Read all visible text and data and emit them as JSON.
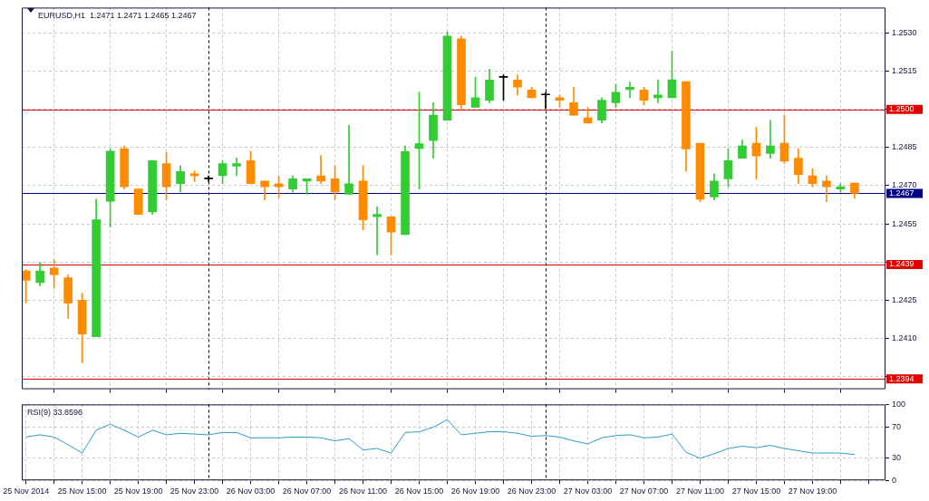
{
  "chart_data": [
    {
      "type": "candlestick",
      "title": "EURUSD,H1  1.2471 1.2471 1.2465 1.2467",
      "x": [
        "2014-11-25T11:00",
        "2014-11-25T12:00",
        "2014-11-25T13:00",
        "2014-11-25T14:00",
        "2014-11-25T15:00",
        "2014-11-25T16:00",
        "2014-11-25T17:00",
        "2014-11-25T18:00",
        "2014-11-25T19:00",
        "2014-11-25T20:00",
        "2014-11-25T21:00",
        "2014-11-25T22:00",
        "2014-11-25T23:00",
        "2014-11-26T00:00",
        "2014-11-26T01:00",
        "2014-11-26T02:00",
        "2014-11-26T03:00",
        "2014-11-26T04:00",
        "2014-11-26T05:00",
        "2014-11-26T06:00",
        "2014-11-26T07:00",
        "2014-11-26T08:00",
        "2014-11-26T09:00",
        "2014-11-26T10:00",
        "2014-11-26T11:00",
        "2014-11-26T12:00",
        "2014-11-26T13:00",
        "2014-11-26T14:00",
        "2014-11-26T15:00",
        "2014-11-26T16:00",
        "2014-11-26T17:00",
        "2014-11-26T18:00",
        "2014-11-26T19:00",
        "2014-11-26T20:00",
        "2014-11-26T21:00",
        "2014-11-26T22:00",
        "2014-11-26T23:00",
        "2014-11-27T00:00",
        "2014-11-27T01:00",
        "2014-11-27T02:00",
        "2014-11-27T03:00",
        "2014-11-27T04:00",
        "2014-11-27T05:00",
        "2014-11-27T06:00",
        "2014-11-27T07:00",
        "2014-11-27T08:00",
        "2014-11-27T09:00",
        "2014-11-27T10:00",
        "2014-11-27T11:00",
        "2014-11-27T12:00",
        "2014-11-27T13:00",
        "2014-11-27T14:00",
        "2014-11-27T15:00",
        "2014-11-27T16:00",
        "2014-11-27T17:00",
        "2014-11-27T18:00",
        "2014-11-27T19:00",
        "2014-11-27T20:00",
        "2014-11-27T21:00",
        "2014-11-27T22:00"
      ],
      "ohlc": [
        [
          1.24365,
          1.2437,
          1.2424,
          1.24328
        ],
        [
          1.24319,
          1.24397,
          1.24307,
          1.24365
        ],
        [
          1.24376,
          1.24408,
          1.24296,
          1.2435
        ],
        [
          1.24338,
          1.2435,
          1.24178,
          1.24238
        ],
        [
          1.2425,
          1.24278,
          1.24004,
          1.24117
        ],
        [
          1.24106,
          1.24647,
          1.24106,
          1.24566
        ],
        [
          1.24639,
          1.24846,
          1.24537,
          1.24836
        ],
        [
          1.24846,
          1.24856,
          1.24687,
          1.24696
        ],
        [
          1.24687,
          1.24687,
          1.24587,
          1.24587
        ],
        [
          1.24597,
          1.24798,
          1.24587,
          1.24798
        ],
        [
          1.24787,
          1.24831,
          1.24644,
          1.24696
        ],
        [
          1.24708,
          1.24779,
          1.24675,
          1.24756
        ],
        [
          1.24747,
          1.24758,
          1.24716,
          1.24739
        ],
        [
          1.24727,
          1.24739,
          1.24716,
          1.24727
        ],
        [
          1.24739,
          1.24798,
          1.24708,
          1.24787
        ],
        [
          1.24777,
          1.24809,
          1.24739,
          1.24787
        ],
        [
          1.24798,
          1.24836,
          1.24708,
          1.24708
        ],
        [
          1.24718,
          1.24718,
          1.24644,
          1.24696
        ],
        [
          1.24708,
          1.24739,
          1.24652,
          1.24696
        ],
        [
          1.24687,
          1.24739,
          1.24675,
          1.24727
        ],
        [
          1.24718,
          1.24727,
          1.24666,
          1.24727
        ],
        [
          1.24739,
          1.24819,
          1.24708,
          1.24718
        ],
        [
          1.24727,
          1.24779,
          1.24644,
          1.24675
        ],
        [
          1.24666,
          1.24937,
          1.24666,
          1.24708
        ],
        [
          1.24718,
          1.24779,
          1.24526,
          1.24566
        ],
        [
          1.24578,
          1.24618,
          1.24428,
          1.24587
        ],
        [
          1.24578,
          1.24578,
          1.24428,
          1.24518
        ],
        [
          1.24508,
          1.24856,
          1.24508,
          1.24834
        ],
        [
          1.24846,
          1.25067,
          1.24687,
          1.24865
        ],
        [
          1.24877,
          1.25026,
          1.24808,
          1.24977
        ],
        [
          1.24957,
          1.25305,
          1.24957,
          1.25288
        ],
        [
          1.25277,
          1.25288,
          1.24998,
          1.25018
        ],
        [
          1.25008,
          1.25126,
          1.25008,
          1.25046
        ],
        [
          1.25036,
          1.25158,
          1.25026,
          1.25115
        ],
        [
          1.25126,
          1.25136,
          1.25036,
          1.25126
        ],
        [
          1.25115,
          1.25136,
          1.25055,
          1.25087
        ],
        [
          1.25076,
          1.25087,
          1.25046,
          1.25046
        ],
        [
          1.25057,
          1.25067,
          1.25003,
          1.25057
        ],
        [
          1.25046,
          1.25057,
          1.25008,
          1.25036
        ],
        [
          1.25026,
          1.25087,
          1.24977,
          1.24977
        ],
        [
          1.24967,
          1.25008,
          1.24946,
          1.24946
        ],
        [
          1.24957,
          1.25046,
          1.24946,
          1.25036
        ],
        [
          1.25026,
          1.25098,
          1.25008,
          1.25067
        ],
        [
          1.25078,
          1.25107,
          1.25046,
          1.25087
        ],
        [
          1.25076,
          1.25087,
          1.25018,
          1.25036
        ],
        [
          1.25046,
          1.25116,
          1.25026,
          1.25057
        ],
        [
          1.25046,
          1.25228,
          1.25046,
          1.25116
        ],
        [
          1.25109,
          1.25109,
          1.24756,
          1.24844
        ],
        [
          1.24867,
          1.24867,
          1.24637,
          1.24647
        ],
        [
          1.24656,
          1.24747,
          1.24644,
          1.24718
        ],
        [
          1.24727,
          1.24846,
          1.24696,
          1.24798
        ],
        [
          1.24808,
          1.24879,
          1.24808,
          1.24856
        ],
        [
          1.24867,
          1.24931,
          1.24727,
          1.24817
        ],
        [
          1.24827,
          1.24957,
          1.24808,
          1.24856
        ],
        [
          1.24867,
          1.24978,
          1.24787,
          1.24796
        ],
        [
          1.24808,
          1.24846,
          1.24708,
          1.24744
        ],
        [
          1.24739,
          1.24767,
          1.24696,
          1.24708
        ],
        [
          1.24718,
          1.24739,
          1.24637,
          1.24696
        ],
        [
          1.24687,
          1.24708,
          1.24675,
          1.24696
        ],
        [
          1.2471,
          1.2471,
          1.2465,
          1.2467
        ]
      ],
      "colors": [
        "#ff8c00",
        "#32cd32",
        "#ff8c00",
        "#ff8c00",
        "#ff8c00",
        "#32cd32",
        "#32cd32",
        "#ff8c00",
        "#ff8c00",
        "#32cd32",
        "#ff8c00",
        "#32cd32",
        "#ff8c00",
        "#000000",
        "#32cd32",
        "#32cd32",
        "#ff8c00",
        "#ff8c00",
        "#ff8c00",
        "#32cd32",
        "#32cd32",
        "#ff8c00",
        "#ff8c00",
        "#32cd32",
        "#ff8c00",
        "#32cd32",
        "#ff8c00",
        "#32cd32",
        "#32cd32",
        "#32cd32",
        "#32cd32",
        "#ff8c00",
        "#32cd32",
        "#32cd32",
        "#000000",
        "#ff8c00",
        "#ff8c00",
        "#000000",
        "#ff8c00",
        "#ff8c00",
        "#ff8c00",
        "#32cd32",
        "#32cd32",
        "#32cd32",
        "#ff8c00",
        "#32cd32",
        "#32cd32",
        "#ff8c00",
        "#ff8c00",
        "#32cd32",
        "#32cd32",
        "#32cd32",
        "#ff8c00",
        "#32cd32",
        "#ff8c00",
        "#ff8c00",
        "#ff8c00",
        "#ff8c00",
        "#32cd32",
        "#ff8c00"
      ],
      "xlim": [
        "2014-11-25T10:42",
        "2014-11-28T00:12"
      ],
      "xticks": [
        {
          "value": "2014-11-25T11:00",
          "label": null
        },
        {
          "value": "2014-11-25T15:00",
          "label": null
        },
        {
          "value": "2014-11-25T19:00",
          "label": null
        },
        {
          "value": "2014-11-25T23:00",
          "label": null
        },
        {
          "value": "2014-11-26T03:00",
          "label": null
        },
        {
          "value": "2014-11-26T07:00",
          "label": null
        },
        {
          "value": "2014-11-26T11:00",
          "label": null
        },
        {
          "value": "2014-11-26T15:00",
          "label": null
        },
        {
          "value": "2014-11-26T19:00",
          "label": null
        },
        {
          "value": "2014-11-26T23:00",
          "label": null
        },
        {
          "value": "2014-11-27T03:00",
          "label": null
        },
        {
          "value": "2014-11-27T07:00",
          "label": null
        },
        {
          "value": "2014-11-27T11:00",
          "label": null
        },
        {
          "value": "2014-11-27T15:00",
          "label": null
        },
        {
          "value": "2014-11-27T19:00",
          "label": null
        }
      ],
      "ylim": [
        1.239,
        1.254
      ],
      "yticks": [
        {
          "value": 1.2395,
          "label": null
        },
        {
          "value": 1.241,
          "label": "1.2410"
        },
        {
          "value": 1.2425,
          "label": "1.2425"
        },
        {
          "value": 1.244,
          "label": null
        },
        {
          "value": 1.2455,
          "label": "1.2455"
        },
        {
          "value": 1.247,
          "label": "1.2470"
        },
        {
          "value": 1.2485,
          "label": "1.2485"
        },
        {
          "value": 1.25,
          "label": null
        },
        {
          "value": 1.2515,
          "label": "1.2515"
        },
        {
          "value": 1.253,
          "label": "1.2530"
        }
      ],
      "grid": true,
      "tick_labels": "y",
      "ref_lines": [
        {
          "axis": "y",
          "value": 1.25,
          "label": "1.2500",
          "color": "#e00000"
        },
        {
          "axis": "y",
          "value": 1.2439,
          "label": "1.2439",
          "color": "#e00000"
        },
        {
          "axis": "y",
          "value": 1.2394,
          "label": "1.2394",
          "color": "#e00000"
        },
        {
          "axis": "y",
          "value": 1.2467,
          "label": "1.2467",
          "color": "#000080"
        },
        {
          "axis": "x",
          "value": "2014-11-26T00:00",
          "color": "#000000",
          "line_style": "dashed"
        },
        {
          "axis": "x",
          "value": "2014-11-27T00:00",
          "color": "#000000",
          "line_style": "dashed"
        }
      ]
    },
    {
      "type": "line",
      "title": "RSI(9) 33.8596",
      "x": [
        "2014-11-25T11:00",
        "2014-11-25T12:00",
        "2014-11-25T13:00",
        "2014-11-25T14:00",
        "2014-11-25T15:00",
        "2014-11-25T16:00",
        "2014-11-25T17:00",
        "2014-11-25T18:00",
        "2014-11-25T19:00",
        "2014-11-25T20:00",
        "2014-11-25T21:00",
        "2014-11-25T22:00",
        "2014-11-25T23:00",
        "2014-11-26T00:00",
        "2014-11-26T01:00",
        "2014-11-26T02:00",
        "2014-11-26T03:00",
        "2014-11-26T04:00",
        "2014-11-26T05:00",
        "2014-11-26T06:00",
        "2014-11-26T07:00",
        "2014-11-26T08:00",
        "2014-11-26T09:00",
        "2014-11-26T10:00",
        "2014-11-26T11:00",
        "2014-11-26T12:00",
        "2014-11-26T13:00",
        "2014-11-26T14:00",
        "2014-11-26T15:00",
        "2014-11-26T16:00",
        "2014-11-26T17:00",
        "2014-11-26T18:00",
        "2014-11-26T19:00",
        "2014-11-26T20:00",
        "2014-11-26T21:00",
        "2014-11-26T22:00",
        "2014-11-26T23:00",
        "2014-11-27T00:00",
        "2014-11-27T01:00",
        "2014-11-27T02:00",
        "2014-11-27T03:00",
        "2014-11-27T04:00",
        "2014-11-27T05:00",
        "2014-11-27T06:00",
        "2014-11-27T07:00",
        "2014-11-27T08:00",
        "2014-11-27T09:00",
        "2014-11-27T10:00",
        "2014-11-27T11:00",
        "2014-11-27T12:00",
        "2014-11-27T13:00",
        "2014-11-27T14:00",
        "2014-11-27T15:00",
        "2014-11-27T16:00",
        "2014-11-27T17:00",
        "2014-11-27T18:00",
        "2014-11-27T19:00",
        "2014-11-27T20:00",
        "2014-11-27T21:00",
        "2014-11-27T22:00"
      ],
      "series": [
        {
          "color": "#2e9cc4",
          "values": [
            57,
            60,
            57,
            47,
            36,
            66,
            74,
            66,
            57,
            66,
            60,
            62,
            61,
            60,
            63,
            63,
            56,
            56,
            56,
            57,
            57,
            56,
            52,
            55,
            40,
            42,
            36,
            63,
            64,
            70,
            80,
            60,
            62,
            64,
            64,
            62,
            58,
            59,
            57,
            52,
            48,
            56,
            59,
            60,
            56,
            57,
            61,
            37,
            29,
            35,
            42,
            45,
            43,
            46,
            42,
            39,
            36,
            36,
            36,
            34
          ]
        }
      ],
      "xlim": [
        "2014-11-25T10:42",
        "2014-11-28T00:12"
      ],
      "xticks": [
        {
          "value": "2014-11-25T11:00",
          "label": "25 Nov 2014"
        },
        {
          "value": "2014-11-25T13:00",
          "label": null
        },
        {
          "value": "2014-11-25T15:00",
          "label": "25 Nov 15:00"
        },
        {
          "value": "2014-11-25T17:00",
          "label": null
        },
        {
          "value": "2014-11-25T19:00",
          "label": "25 Nov 19:00"
        },
        {
          "value": "2014-11-25T21:00",
          "label": null
        },
        {
          "value": "2014-11-25T23:00",
          "label": "25 Nov 23:00"
        },
        {
          "value": "2014-11-26T01:00",
          "label": null
        },
        {
          "value": "2014-11-26T03:00",
          "label": "26 Nov 03:00"
        },
        {
          "value": "2014-11-26T05:00",
          "label": null
        },
        {
          "value": "2014-11-26T07:00",
          "label": "26 Nov 07:00"
        },
        {
          "value": "2014-11-26T09:00",
          "label": null
        },
        {
          "value": "2014-11-26T11:00",
          "label": "26 Nov 11:00"
        },
        {
          "value": "2014-11-26T13:00",
          "label": null
        },
        {
          "value": "2014-11-26T15:00",
          "label": "26 Nov 15:00"
        },
        {
          "value": "2014-11-26T17:00",
          "label": null
        },
        {
          "value": "2014-11-26T19:00",
          "label": "26 Nov 19:00"
        },
        {
          "value": "2014-11-26T21:00",
          "label": null
        },
        {
          "value": "2014-11-26T23:00",
          "label": "26 Nov 23:00"
        },
        {
          "value": "2014-11-27T01:00",
          "label": null
        },
        {
          "value": "2014-11-27T03:00",
          "label": "27 Nov 03:00"
        },
        {
          "value": "2014-11-27T05:00",
          "label": null
        },
        {
          "value": "2014-11-27T07:00",
          "label": "27 Nov 07:00"
        },
        {
          "value": "2014-11-27T09:00",
          "label": null
        },
        {
          "value": "2014-11-27T11:00",
          "label": "27 Nov 11:00"
        },
        {
          "value": "2014-11-27T13:00",
          "label": null
        },
        {
          "value": "2014-11-27T15:00",
          "label": "27 Nov 15:00"
        },
        {
          "value": "2014-11-27T17:00",
          "label": null
        },
        {
          "value": "2014-11-27T19:00",
          "label": "27 Nov 19:00"
        },
        {
          "value": "2014-11-27T21:00",
          "label": null
        },
        {
          "value": "2014-11-27T23:00",
          "label": null
        }
      ],
      "ylim": [
        0,
        100
      ],
      "yticks": [
        0,
        30,
        70,
        100
      ],
      "grid": true,
      "ref_lines": [
        {
          "axis": "x",
          "value": "2014-11-26T00:00",
          "color": "#000000",
          "line_style": "dashed"
        },
        {
          "axis": "x",
          "value": "2014-11-27T00:00",
          "color": "#000000",
          "line_style": "dashed"
        }
      ]
    }
  ]
}
